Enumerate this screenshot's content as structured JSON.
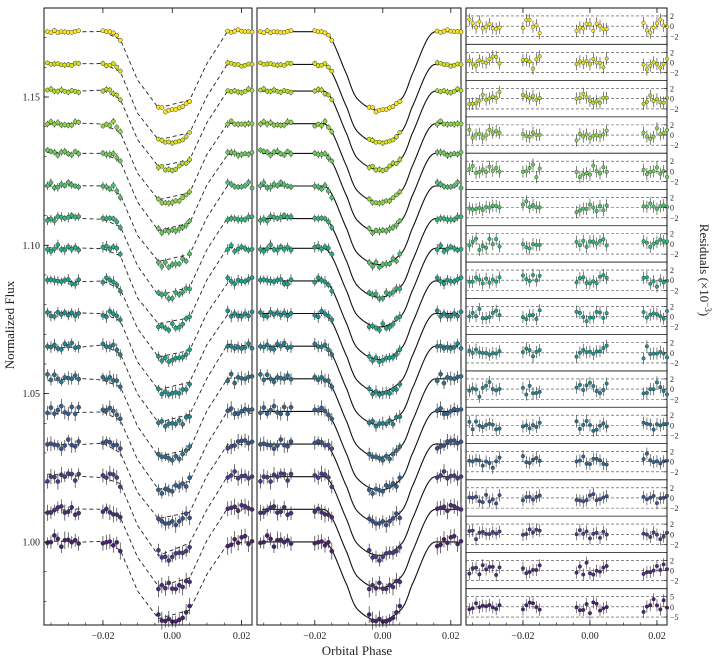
{
  "chart_data": {
    "type": "scatter",
    "xlabel": "Orbital Phase",
    "ylabel": "Normalized Flux",
    "y2label": "Residuals (×10",
    "y2label_exp": "−3",
    "y2label_close": ")",
    "xlim": [
      -0.037,
      0.023
    ],
    "ylim": [
      0.972,
      1.18
    ],
    "xticks": [
      -0.02,
      0.0,
      0.02
    ],
    "xtick_labels": [
      "−0.02",
      "0.00",
      "0.02"
    ],
    "yticks": [
      1.0,
      1.05,
      1.1,
      1.15
    ],
    "ytick_labels": [
      "1.00",
      "1.05",
      "1.10",
      "1.15"
    ],
    "n_channels": 17,
    "baselines": [
      1.172,
      1.161,
      1.152,
      1.141,
      1.131,
      1.12,
      1.109,
      1.099,
      1.088,
      1.077,
      1.066,
      1.055,
      1.044,
      1.033,
      1.022,
      1.011,
      1.0
    ],
    "transit_depth": 0.0265,
    "ingress": [
      -0.0175,
      -0.0075
    ],
    "egress": [
      0.0055,
      0.0155
    ],
    "phase_groups": [
      [
        -0.036,
        -0.027
      ],
      [
        -0.02,
        -0.015
      ],
      [
        -0.004,
        0.005
      ],
      [
        0.016,
        0.023
      ]
    ],
    "residual_ticks": [
      "2",
      "0",
      "−2"
    ],
    "last_residual_ticks": [
      "5",
      "0",
      "−5"
    ],
    "colors": [
      "#fde725",
      "#d8e219",
      "#b5de2b",
      "#8fd744",
      "#6ccd5a",
      "#4ec36b",
      "#35b779",
      "#25ac82",
      "#1fa187",
      "#21918c",
      "#26828e",
      "#2c728e",
      "#33638d",
      "#3b528b",
      "#433e85",
      "#472d7b",
      "#482071"
    ]
  }
}
